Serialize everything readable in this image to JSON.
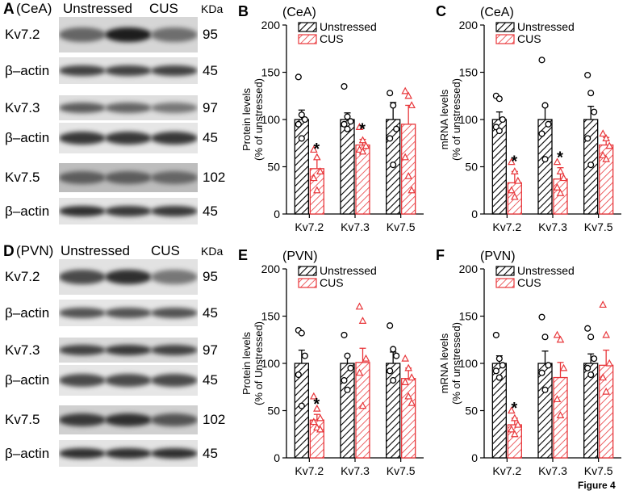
{
  "figure_label": "Figure 4",
  "blot_panels": [
    {
      "letter": "A",
      "region": "(CeA)",
      "lane1": "Unstressed",
      "lane2": "CUS",
      "kda_header": "KDa",
      "rows": [
        {
          "label": "Kv7.2",
          "kda": "95",
          "strength": [
            0.55,
            0.95,
            0.5
          ],
          "bg": "#d6d6d6"
        },
        {
          "label": "β–actin",
          "kda": "45",
          "strength": [
            0.75,
            0.75,
            0.75
          ],
          "bg": "#e2e2e2"
        },
        {
          "label": "Kv7.3",
          "kda": "97",
          "strength": [
            0.6,
            0.55,
            0.45
          ],
          "bg": "#dedede"
        },
        {
          "label": "β–actin",
          "kda": "45",
          "strength": [
            0.8,
            0.8,
            0.8
          ],
          "bg": "#e6e6e6"
        },
        {
          "label": "Kv7.5",
          "kda": "102",
          "strength": [
            0.6,
            0.6,
            0.55
          ],
          "bg": "#bdbdbd"
        },
        {
          "label": "β–actin",
          "kda": "45",
          "strength": [
            0.85,
            0.8,
            0.8
          ],
          "bg": "#e4e4e4"
        }
      ]
    },
    {
      "letter": "D",
      "region": "(PVN)",
      "lane1": "Unstressed",
      "lane2": "CUS",
      "kda_header": "KDa",
      "rows": [
        {
          "label": "Kv7.2",
          "kda": "95",
          "strength": [
            0.7,
            0.85,
            0.45
          ],
          "bg": "#e2e2e2"
        },
        {
          "label": "β–actin",
          "kda": "45",
          "strength": [
            0.65,
            0.65,
            0.65
          ],
          "bg": "#e6e6e6"
        },
        {
          "label": "Kv7.3",
          "kda": "97",
          "strength": [
            0.75,
            0.8,
            0.75
          ],
          "bg": "#dadada"
        },
        {
          "label": "β–actin",
          "kda": "45",
          "strength": [
            0.7,
            0.7,
            0.7
          ],
          "bg": "#e6e6e6"
        },
        {
          "label": "Kv7.5",
          "kda": "102",
          "strength": [
            0.8,
            0.85,
            0.65
          ],
          "bg": "#d0d0d0"
        },
        {
          "label": "β–actin",
          "kda": "45",
          "strength": [
            0.85,
            0.85,
            0.85
          ],
          "bg": "#e4e4e4"
        }
      ]
    }
  ],
  "colors": {
    "unstressed": "#000000",
    "cus": "#e8363a"
  },
  "chart_data": [
    {
      "type": "bar",
      "panel": "B",
      "region": "(CeA)",
      "ylabel": "Protein levels (% of unstressed)",
      "ylim": [
        0,
        200
      ],
      "yticks": [
        0,
        50,
        100,
        150,
        200
      ],
      "categories": [
        "Kv7.2",
        "Kv7.3",
        "Kv7.5"
      ],
      "series": [
        {
          "name": "Unstressed",
          "values": [
            100,
            100,
            100
          ],
          "errors": [
            10,
            7,
            18
          ],
          "points": [
            [
              145,
              105,
              100,
              95,
              80
            ],
            [
              135,
              103,
              98,
              95,
              90
            ],
            [
              128,
              115,
              90,
              80,
              52
            ]
          ]
        },
        {
          "name": "CUS",
          "values": [
            48,
            73,
            95
          ],
          "errors": [
            10,
            6,
            20
          ],
          "points": [
            [
              68,
              60,
              45,
              38,
              25
            ],
            [
              92,
              78,
              72,
              68,
              66
            ],
            [
              130,
              125,
              115,
              60,
              40,
              25
            ]
          ]
        }
      ],
      "significance": [
        "*",
        "*",
        ""
      ]
    },
    {
      "type": "bar",
      "panel": "C",
      "region": "(CeA)",
      "ylabel": "mRNA levels (% of unstressed)",
      "ylim": [
        0,
        200
      ],
      "yticks": [
        0,
        50,
        100,
        150,
        200
      ],
      "categories": [
        "Kv7.2",
        "Kv7.3",
        "Kv7.5"
      ],
      "series": [
        {
          "name": "Unstressed",
          "values": [
            100,
            100,
            100
          ],
          "errors": [
            8,
            14,
            14
          ],
          "points": [
            [
              125,
              122,
              100,
              92,
              88
            ],
            [
              163,
              115,
              95,
              85,
              58
            ],
            [
              147,
              128,
              108,
              80,
              52
            ]
          ]
        },
        {
          "name": "CUS",
          "values": [
            33,
            37,
            73
          ],
          "errors": [
            12,
            12,
            8
          ],
          "points": [
            [
              55,
              45,
              35,
              25,
              18
            ],
            [
              55,
              45,
              38,
              28,
              22
            ],
            [
              85,
              80,
              72,
              62,
              58
            ]
          ]
        }
      ],
      "significance": [
        "*",
        "*",
        ""
      ]
    },
    {
      "type": "bar",
      "panel": "E",
      "region": "(PVN)",
      "ylabel": "Protein levels (% of Unstressed)",
      "ylim": [
        0,
        200
      ],
      "yticks": [
        0,
        50,
        100,
        150,
        200
      ],
      "categories": [
        "Kv7.2",
        "Kv7.3",
        "Kv7.5"
      ],
      "series": [
        {
          "name": "Unstressed",
          "values": [
            100,
            100,
            100
          ],
          "errors": [
            14,
            8,
            12
          ],
          "points": [
            [
              135,
              132,
              108,
              88,
              55
            ],
            [
              130,
              108,
              95,
              82,
              72
            ],
            [
              140,
              115,
              108,
              92,
              82
            ]
          ]
        },
        {
          "name": "CUS",
          "values": [
            40,
            101,
            84
          ],
          "errors": [
            6,
            15,
            11
          ],
          "points": [
            [
              65,
              52,
              42,
              38,
              32,
              30
            ],
            [
              160,
              145,
              105,
              90,
              55
            ],
            [
              105,
              95,
              85,
              80,
              65,
              58
            ]
          ]
        }
      ],
      "significance": [
        "*",
        "",
        ""
      ]
    },
    {
      "type": "bar",
      "panel": "F",
      "region": "(PVN)",
      "ylabel": "mRNA levels (% of unstressed)",
      "ylim": [
        0,
        200
      ],
      "yticks": [
        0,
        50,
        100,
        150,
        200
      ],
      "categories": [
        "Kv7.2",
        "Kv7.3",
        "Kv7.5"
      ],
      "series": [
        {
          "name": "Unstressed",
          "values": [
            100,
            100,
            100
          ],
          "errors": [
            8,
            13,
            10
          ],
          "points": [
            [
              130,
              105,
              98,
              92,
              85
            ],
            [
              149,
              128,
              98,
              90,
              72
            ],
            [
              137,
              128,
              105,
              95,
              88
            ]
          ]
        },
        {
          "name": "CUS",
          "values": [
            35,
            85,
            98
          ],
          "errors": [
            7,
            16,
            16
          ],
          "points": [
            [
              50,
              42,
              35,
              30,
              25
            ],
            [
              130,
              125,
              95,
              62,
              45
            ],
            [
              162,
              130,
              100,
              85,
              70
            ]
          ]
        }
      ],
      "significance": [
        "*",
        "",
        ""
      ]
    }
  ]
}
